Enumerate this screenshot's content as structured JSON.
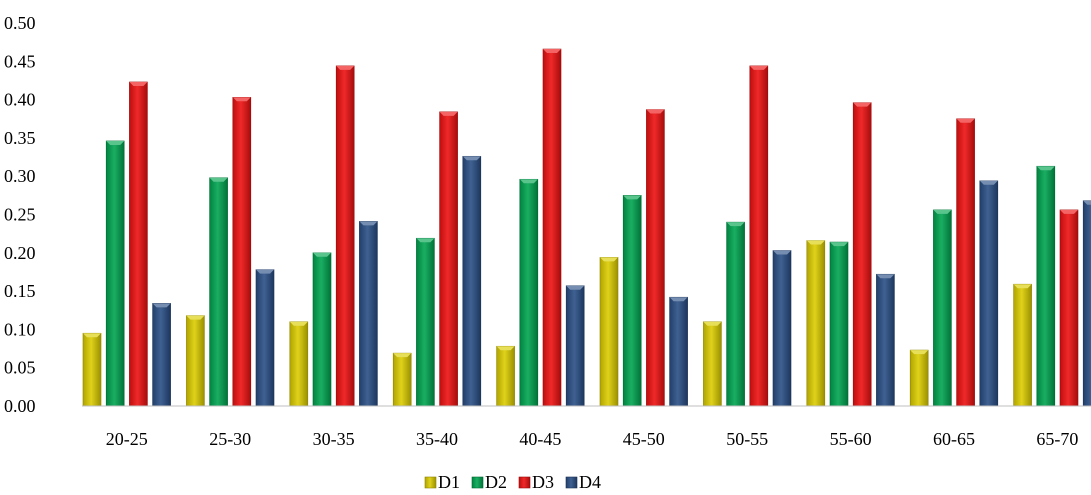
{
  "chart_data": {
    "type": "bar",
    "categories": [
      "20-25",
      "25-30",
      "30-35",
      "35-40",
      "40-45",
      "45-50",
      "50-55",
      "55-60",
      "60-65",
      "65-70"
    ],
    "series": [
      {
        "name": "D1",
        "color": "#dccd00",
        "values": [
          0.095,
          0.118,
          0.11,
          0.069,
          0.078,
          0.194,
          0.11,
          0.216,
          0.073,
          0.159
        ]
      },
      {
        "name": "D2",
        "color": "#00a550",
        "values": [
          0.346,
          0.298,
          0.2,
          0.219,
          0.296,
          0.275,
          0.24,
          0.214,
          0.256,
          0.313
        ]
      },
      {
        "name": "D3",
        "color": "#ee1111",
        "values": [
          0.423,
          0.403,
          0.444,
          0.384,
          0.466,
          0.387,
          0.444,
          0.396,
          0.375,
          0.256
        ]
      },
      {
        "name": "D4",
        "color": "#2a4f86",
        "values": [
          0.134,
          0.178,
          0.241,
          0.326,
          0.157,
          0.142,
          0.203,
          0.172,
          0.294,
          0.268
        ]
      }
    ],
    "yticks": [
      "0.00",
      "0.05",
      "0.10",
      "0.15",
      "0.20",
      "0.25",
      "0.30",
      "0.35",
      "0.40",
      "0.45",
      "0.50"
    ],
    "ylim": [
      0,
      0.5
    ],
    "title": "",
    "xlabel": "",
    "ylabel": "",
    "grid": false,
    "legend_position": "bottom"
  }
}
